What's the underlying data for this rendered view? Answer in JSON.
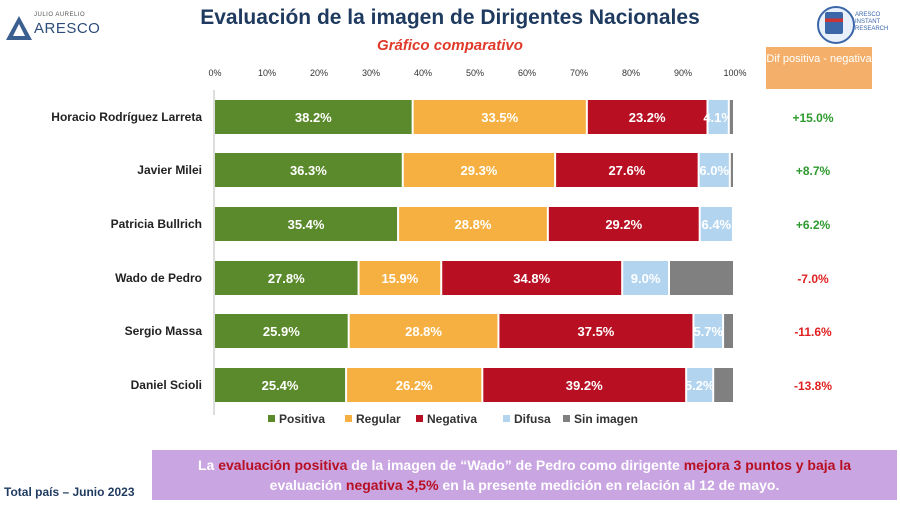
{
  "header": {
    "title": "Evaluación de la imagen de Dirigentes Nacionales",
    "subtitle": "Gráfico comparativo",
    "logo_left_small": "JULIO AURELIO",
    "logo_left_big": "ARESCO",
    "logo_right_text": "ARESCO INSTANT RESEARCH",
    "dif_header": "Dif positiva - negativa"
  },
  "chart_data": {
    "type": "bar",
    "orientation": "horizontal",
    "stacked": true,
    "percent_axis": true,
    "xlim": [
      0,
      100
    ],
    "x_ticks": [
      "0%",
      "10%",
      "20%",
      "30%",
      "40%",
      "50%",
      "60%",
      "70%",
      "80%",
      "90%",
      "100%"
    ],
    "categories": [
      "Horacio Rodríguez Larreta",
      "Javier Milei",
      "Patricia Bullrich",
      "Wado de Pedro",
      "Sergio Massa",
      "Daniel Scioli"
    ],
    "series": [
      {
        "name": "Positiva",
        "color": "#5a8a2b",
        "values": [
          38.2,
          36.3,
          35.4,
          27.8,
          25.9,
          25.4
        ],
        "labels": [
          "38.2%",
          "36.3%",
          "35.4%",
          "27.8%",
          "25.9%",
          "25.4%"
        ]
      },
      {
        "name": "Regular",
        "color": "#f5b041",
        "values": [
          33.5,
          29.3,
          28.8,
          15.9,
          28.8,
          26.2
        ],
        "labels": [
          "33.5%",
          "29.3%",
          "28.8%",
          "15.9%",
          "28.8%",
          "26.2%"
        ]
      },
      {
        "name": "Negativa",
        "color": "#b80f22",
        "values": [
          23.2,
          27.6,
          29.2,
          34.8,
          37.5,
          39.2
        ],
        "labels": [
          "23.2%",
          "27.6%",
          "29.2%",
          "34.8%",
          "37.5%",
          "39.2%"
        ]
      },
      {
        "name": "Difusa",
        "color": "#b3d4ef",
        "values": [
          4.1,
          6.0,
          6.4,
          9.0,
          5.7,
          5.2
        ],
        "labels": [
          "4.1%",
          "6.0%",
          "6.4%",
          "9.0%",
          "5.7%",
          "5.2%"
        ]
      },
      {
        "name": "Sin imagen",
        "color": "#808080",
        "values": [
          1.0,
          0.8,
          0.2,
          12.5,
          2.1,
          4.0
        ],
        "labels": [
          "",
          "",
          "",
          "",
          "",
          ""
        ]
      }
    ],
    "dif": [
      "+15.0%",
      "+8.7%",
      "+6.2%",
      "-7.0%",
      "-11.6%",
      "-13.8%"
    ],
    "dif_colors": [
      "#2e9a2e",
      "#2e9a2e",
      "#2e9a2e",
      "#e02020",
      "#e02020",
      "#e02020"
    ],
    "legend_position": "bottom"
  },
  "caption": {
    "p1": "La ",
    "p2": "evaluación positiva",
    "p3": " de la imagen de “Wado” de Pedro como dirigente ",
    "p4": "mejora 3 puntos y baja la",
    "p5": " evaluación ",
    "p6": "negativa 3,5%",
    "p7": " en la presente medición en relación al 12 de mayo."
  },
  "footer": {
    "text": "Total país – Junio 2023"
  }
}
